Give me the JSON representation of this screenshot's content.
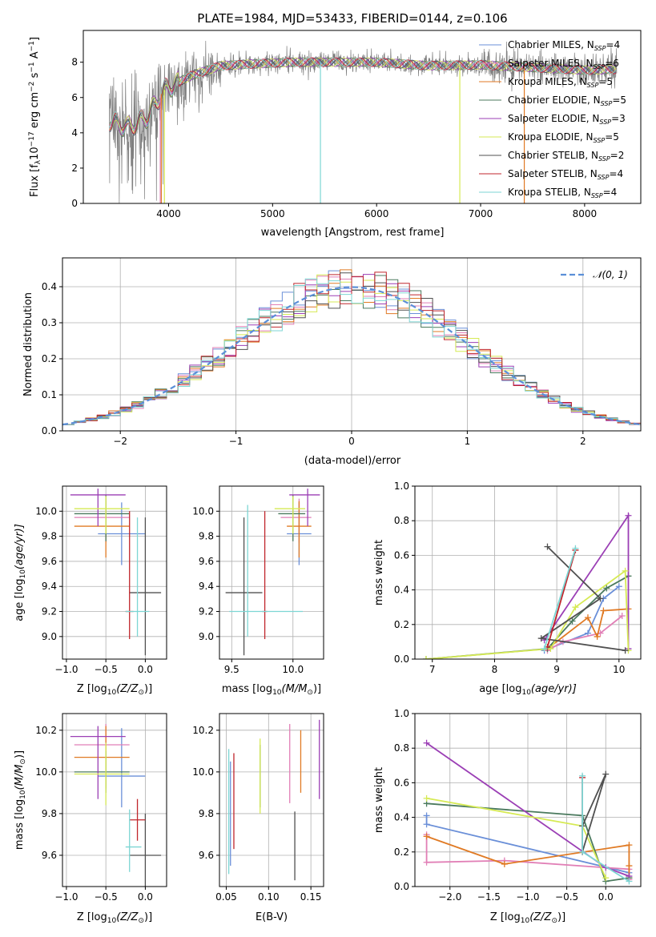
{
  "figure_title": "PLATE=1984, MJD=53433, FIBERID=0144, z=0.106",
  "models": [
    {
      "label": "Chabrier MILES, N",
      "sub": "SSP",
      "tail": "=4",
      "color": "#6a8fd8"
    },
    {
      "label": "Salpeter MILES, N",
      "sub": "SSP",
      "tail": "=6",
      "color": "#e17fb6"
    },
    {
      "label": "Kroupa MILES, N",
      "sub": "SSP",
      "tail": "=5",
      "color": "#e07a24"
    },
    {
      "label": "Chabrier ELODIE, N",
      "sub": "SSP",
      "tail": "=5",
      "color": "#4b7a5e"
    },
    {
      "label": "Salpeter ELODIE, N",
      "sub": "SSP",
      "tail": "=3",
      "color": "#9b3fb5"
    },
    {
      "label": "Kroupa ELODIE, N",
      "sub": "SSP",
      "tail": "=5",
      "color": "#d6ea54"
    },
    {
      "label": "Chabrier STELIB, N",
      "sub": "SSP",
      "tail": "=2",
      "color": "#505050"
    },
    {
      "label": "Salpeter STELIB, N",
      "sub": "SSP",
      "tail": "=4",
      "color": "#c0262c"
    },
    {
      "label": "Kroupa STELIB, N",
      "sub": "SSP",
      "tail": "=4",
      "color": "#7dd6d4"
    }
  ],
  "chart_data": [
    {
      "id": "spectrum",
      "type": "line",
      "xlabel": "wavelength [Angstrom, rest frame]",
      "ylabel_parts": [
        "Flux [f",
        "λ",
        "10",
        "−17",
        " erg cm",
        "−2",
        " s",
        "−1",
        " A",
        "−1",
        "]"
      ],
      "xlim": [
        3180,
        8540
      ],
      "ylim": [
        0,
        9.8
      ],
      "xticks": [
        4000,
        5000,
        6000,
        7000,
        8000
      ],
      "yticks": [
        0,
        2,
        4,
        6,
        8
      ],
      "data_color": "#7f7f7f",
      "continuum_knots": {
        "x": [
          3430,
          3600,
          3800,
          3950,
          4200,
          4500,
          4800,
          5200,
          5600,
          6000,
          6500,
          7000,
          7500,
          8000,
          8300
        ],
        "y": [
          4.7,
          4.3,
          4.9,
          6.4,
          7.2,
          7.8,
          7.9,
          8.0,
          8.0,
          8.0,
          7.8,
          7.85,
          7.7,
          7.55,
          7.6
        ]
      },
      "model_dropouts": [
        {
          "model": 2,
          "x": 3930
        },
        {
          "model": 5,
          "x": 3960
        },
        {
          "model": 8,
          "x": 5460
        },
        {
          "model": 5,
          "x": 6800
        },
        {
          "model": 2,
          "x": 7420
        },
        {
          "model": 1,
          "x": 3920
        }
      ]
    },
    {
      "id": "residual_hist",
      "type": "histogram",
      "xlabel": "(data-model)/error",
      "ylabel": "Normed distribution",
      "xlim": [
        -2.5,
        2.5
      ],
      "ylim": [
        0,
        0.48
      ],
      "xticks": [
        -2,
        -1,
        0,
        1,
        2
      ],
      "yticks": [
        0,
        0.1,
        0.2,
        0.3,
        0.4
      ],
      "bin_edges": [
        -2.5,
        -2.4,
        -2.3,
        -2.2,
        -2.1,
        -2.0,
        -1.9,
        -1.8,
        -1.7,
        -1.6,
        -1.5,
        -1.4,
        -1.3,
        -1.2,
        -1.1,
        -1.0,
        -0.9,
        -0.8,
        -0.7,
        -0.6,
        -0.5,
        -0.4,
        -0.3,
        -0.2,
        -0.1,
        0.0,
        0.1,
        0.2,
        0.3,
        0.4,
        0.5,
        0.6,
        0.7,
        0.8,
        0.9,
        1.0,
        1.1,
        1.2,
        1.3,
        1.4,
        1.5,
        1.6,
        1.7,
        1.8,
        1.9,
        2.0,
        2.1,
        2.2,
        2.3,
        2.4,
        2.5
      ],
      "reference_curve": {
        "label": "𝒩(0, 1)",
        "color": "#5b8fd8"
      }
    },
    {
      "id": "age_vs_Z",
      "type": "errorbar",
      "xlabel_parts": [
        "Z [log",
        "10",
        "(Z/Z",
        "⊙",
        ")]"
      ],
      "ylabel_parts": [
        "age  [log",
        "10",
        "(age/yr)]"
      ],
      "xlim": [
        -1.05,
        0.27
      ],
      "ylim": [
        8.82,
        10.2
      ],
      "xticks": [
        -1.0,
        -0.5,
        0.0
      ],
      "yticks": [
        9.0,
        9.2,
        9.4,
        9.6,
        9.8,
        10.0
      ],
      "points": [
        {
          "model": 0,
          "x": -0.3,
          "y": 9.82,
          "xerr": [
            0.3,
            0.3
          ],
          "yerr": [
            0.25,
            0.25
          ]
        },
        {
          "model": 1,
          "x": -0.5,
          "y": 9.95,
          "xerr": [
            0.4,
            0.3
          ],
          "yerr": [
            0.2,
            0.15
          ]
        },
        {
          "model": 2,
          "x": -0.5,
          "y": 9.88,
          "xerr": [
            0.4,
            0.3
          ],
          "yerr": [
            0.25,
            0.2
          ]
        },
        {
          "model": 3,
          "x": -0.5,
          "y": 9.98,
          "xerr": [
            0.4,
            0.3
          ],
          "yerr": [
            0.22,
            0.15
          ]
        },
        {
          "model": 4,
          "x": -0.6,
          "y": 10.13,
          "xerr": [
            0.35,
            0.35
          ],
          "yerr": [
            0.25,
            0.05
          ]
        },
        {
          "model": 5,
          "x": -0.5,
          "y": 10.02,
          "xerr": [
            0.4,
            0.3
          ],
          "yerr": [
            0.2,
            0.1
          ]
        },
        {
          "model": 6,
          "x": 0.0,
          "y": 9.35,
          "xerr": [
            0.2,
            0.2
          ],
          "yerr": [
            0.5,
            0.6
          ]
        },
        {
          "model": 7,
          "x": -0.2,
          "y": 9.2,
          "xerr": [
            0.05,
            0.05
          ],
          "yerr": [
            0.22,
            0.8
          ]
        },
        {
          "model": 8,
          "x": -0.1,
          "y": 9.2,
          "xerr": [
            0.15,
            0.15
          ],
          "yerr": [
            0.2,
            0.75
          ]
        }
      ]
    },
    {
      "id": "age_vs_mass",
      "type": "errorbar",
      "xlabel_parts": [
        "mass [log",
        "10",
        "(M/M",
        "⊙",
        ")]"
      ],
      "ylabel": "",
      "xlim": [
        9.4,
        10.25
      ],
      "ylim": [
        8.82,
        10.2
      ],
      "xticks": [
        9.5,
        10.0
      ],
      "yticks": [
        9.0,
        9.2,
        9.4,
        9.6,
        9.8,
        10.0
      ],
      "points": [
        {
          "model": 0,
          "x": 10.05,
          "y": 9.82,
          "xerr": [
            0.1,
            0.1
          ],
          "yerr": [
            0.25,
            0.25
          ]
        },
        {
          "model": 1,
          "x": 10.05,
          "y": 9.95,
          "xerr": [
            0.15,
            0.1
          ],
          "yerr": [
            0.2,
            0.15
          ]
        },
        {
          "model": 2,
          "x": 10.05,
          "y": 9.88,
          "xerr": [
            0.1,
            0.1
          ],
          "yerr": [
            0.25,
            0.2
          ]
        },
        {
          "model": 3,
          "x": 10.0,
          "y": 9.98,
          "xerr": [
            0.12,
            0.1
          ],
          "yerr": [
            0.22,
            0.15
          ]
        },
        {
          "model": 4,
          "x": 10.12,
          "y": 10.13,
          "xerr": [
            0.15,
            0.1
          ],
          "yerr": [
            0.25,
            0.05
          ]
        },
        {
          "model": 5,
          "x": 10.0,
          "y": 10.02,
          "xerr": [
            0.15,
            0.1
          ],
          "yerr": [
            0.2,
            0.1
          ]
        },
        {
          "model": 6,
          "x": 9.6,
          "y": 9.35,
          "xerr": [
            0.15,
            0.15
          ],
          "yerr": [
            0.5,
            0.6
          ]
        },
        {
          "model": 7,
          "x": 9.77,
          "y": 9.2,
          "xerr": [
            0.02,
            0.02
          ],
          "yerr": [
            0.22,
            0.8
          ]
        },
        {
          "model": 8,
          "x": 9.63,
          "y": 9.2,
          "xerr": [
            0.15,
            0.45
          ],
          "yerr": [
            0.2,
            0.85
          ]
        }
      ]
    },
    {
      "id": "weights_vs_age",
      "type": "line",
      "xlabel_parts": [
        "age  [log",
        "10",
        "(age/yr)]"
      ],
      "ylabel": "mass weight",
      "xlim": [
        6.72,
        10.35
      ],
      "ylim": [
        0,
        1.0
      ],
      "xticks": [
        7,
        8,
        9,
        10
      ],
      "yticks": [
        0.0,
        0.2,
        0.4,
        0.6,
        0.8,
        1.0
      ],
      "series": [
        {
          "model": 0,
          "x": [
            8.8,
            9.5,
            9.75,
            10.0
          ],
          "y": [
            0.05,
            0.15,
            0.35,
            0.42
          ]
        },
        {
          "model": 1,
          "x": [
            8.85,
            9.1,
            9.7,
            10.05
          ],
          "y": [
            0.05,
            0.1,
            0.15,
            0.25
          ]
        },
        {
          "model": 2,
          "x": [
            8.85,
            9.5,
            9.65,
            9.75,
            10.15
          ],
          "y": [
            0.06,
            0.24,
            0.13,
            0.28,
            0.29
          ]
        },
        {
          "model": 3,
          "x": [
            6.9,
            8.85,
            9.25,
            9.8,
            10.15
          ],
          "y": [
            0.0,
            0.06,
            0.22,
            0.41,
            0.48
          ]
        },
        {
          "model": 4,
          "x": [
            8.8,
            10.15,
            10.15
          ],
          "y": [
            0.11,
            0.83,
            0.06
          ]
        },
        {
          "model": 5,
          "x": [
            6.9,
            8.9,
            9.3,
            10.1,
            10.15
          ],
          "y": [
            0.0,
            0.06,
            0.3,
            0.51,
            0.05
          ]
        },
        {
          "model": 6,
          "x": [
            8.85,
            9.7,
            8.75,
            10.1
          ],
          "y": [
            0.65,
            0.35,
            0.12,
            0.05
          ]
        },
        {
          "model": 7,
          "x": [
            8.85,
            9.3
          ],
          "y": [
            0.07,
            0.63
          ]
        },
        {
          "model": 8,
          "x": [
            8.8,
            9.3
          ],
          "y": [
            0.06,
            0.64
          ]
        }
      ]
    },
    {
      "id": "mass_vs_Z",
      "type": "errorbar",
      "xlabel_parts": [
        "Z [log",
        "10",
        "(Z/Z",
        "⊙",
        ")]"
      ],
      "ylabel_parts": [
        "mass [log",
        "10",
        "(M/M",
        "⊙",
        ")]"
      ],
      "xlim": [
        -1.05,
        0.27
      ],
      "ylim": [
        9.45,
        10.28
      ],
      "xticks": [
        -1.0,
        -0.5,
        0.0
      ],
      "yticks": [
        9.6,
        9.8,
        10.0,
        10.2
      ],
      "points": [
        {
          "model": 0,
          "x": -0.3,
          "y": 9.98,
          "xerr": [
            0.3,
            0.3
          ],
          "yerr": [
            0.15,
            0.23
          ]
        },
        {
          "model": 1,
          "x": -0.5,
          "y": 10.13,
          "xerr": [
            0.4,
            0.3
          ],
          "yerr": [
            0.15,
            0.1
          ]
        },
        {
          "model": 2,
          "x": -0.5,
          "y": 10.07,
          "xerr": [
            0.4,
            0.3
          ],
          "yerr": [
            0.15,
            0.15
          ]
        },
        {
          "model": 3,
          "x": -0.5,
          "y": 10.0,
          "xerr": [
            0.4,
            0.3
          ],
          "yerr": [
            0.1,
            0.1
          ]
        },
        {
          "model": 4,
          "x": -0.6,
          "y": 10.17,
          "xerr": [
            0.35,
            0.35
          ],
          "yerr": [
            0.3,
            0.05
          ]
        },
        {
          "model": 5,
          "x": -0.5,
          "y": 9.99,
          "xerr": [
            0.4,
            0.3
          ],
          "yerr": [
            0.15,
            0.15
          ]
        },
        {
          "model": 6,
          "x": 0.0,
          "y": 9.6,
          "xerr": [
            0.2,
            0.2
          ],
          "yerr": [
            0.15,
            0.2
          ]
        },
        {
          "model": 7,
          "x": -0.1,
          "y": 9.77,
          "xerr": [
            0.1,
            0.1
          ],
          "yerr": [
            0.1,
            0.1
          ]
        },
        {
          "model": 8,
          "x": -0.2,
          "y": 9.64,
          "xerr": [
            0.05,
            0.15
          ],
          "yerr": [
            0.12,
            0.18
          ]
        }
      ]
    },
    {
      "id": "mass_vs_EBV",
      "type": "errorbar",
      "xlabel": "E(B-V)",
      "ylabel": "",
      "xlim": [
        0.042,
        0.165
      ],
      "ylim": [
        9.45,
        10.28
      ],
      "xticks": [
        0.05,
        0.1,
        0.15
      ],
      "yticks": [
        9.6,
        9.8,
        10.0,
        10.2
      ],
      "points": [
        {
          "model": 0,
          "x": 0.055,
          "y": 9.8,
          "xerr": [
            0,
            0
          ],
          "yerr": [
            0.25,
            0.25
          ]
        },
        {
          "model": 1,
          "x": 0.125,
          "y": 10.05,
          "xerr": [
            0,
            0
          ],
          "yerr": [
            0.2,
            0.18
          ]
        },
        {
          "model": 2,
          "x": 0.138,
          "y": 10.05,
          "xerr": [
            0,
            0
          ],
          "yerr": [
            0.15,
            0.15
          ]
        },
        {
          "model": 3,
          "x": 0.09,
          "y": 9.98,
          "xerr": [
            0,
            0
          ],
          "yerr": [
            0.15,
            0.15
          ]
        },
        {
          "model": 4,
          "x": 0.16,
          "y": 10.05,
          "xerr": [
            0,
            0
          ],
          "yerr": [
            0.18,
            0.2
          ]
        },
        {
          "model": 5,
          "x": 0.09,
          "y": 9.98,
          "xerr": [
            0,
            0
          ],
          "yerr": [
            0.18,
            0.18
          ]
        },
        {
          "model": 6,
          "x": 0.131,
          "y": 9.6,
          "xerr": [
            0,
            0
          ],
          "yerr": [
            0.12,
            0.21
          ]
        },
        {
          "model": 7,
          "x": 0.059,
          "y": 9.86,
          "xerr": [
            0,
            0
          ],
          "yerr": [
            0.23,
            0.23
          ]
        },
        {
          "model": 8,
          "x": 0.053,
          "y": 9.81,
          "xerr": [
            0,
            0
          ],
          "yerr": [
            0.3,
            0.3
          ]
        }
      ]
    },
    {
      "id": "weights_vs_Z",
      "type": "line",
      "xlabel_parts": [
        "Z [log",
        "10",
        "(Z/Z",
        "⊙",
        ")]"
      ],
      "ylabel": "mass weight",
      "xlim": [
        -2.45,
        0.45
      ],
      "ylim": [
        0,
        1.0
      ],
      "xticks": [
        -2.0,
        -1.5,
        -1.0,
        -0.5,
        0.0
      ],
      "yticks": [
        0.0,
        0.2,
        0.4,
        0.6,
        0.8,
        1.0
      ],
      "series": [
        {
          "model": 0,
          "x": [
            -2.3,
            -2.3,
            0.3
          ],
          "y": [
            0.41,
            0.36,
            0.08
          ]
        },
        {
          "model": 1,
          "x": [
            -2.3,
            -2.3,
            -1.3,
            0.3,
            0.3
          ],
          "y": [
            0.3,
            0.14,
            0.15,
            0.1,
            0.04
          ]
        },
        {
          "model": 2,
          "x": [
            -2.3,
            -1.3,
            0.3,
            0.3,
            0.3
          ],
          "y": [
            0.29,
            0.13,
            0.24,
            0.12,
            0.05
          ]
        },
        {
          "model": 3,
          "x": [
            -2.3,
            -0.3,
            0.0,
            0.3
          ],
          "y": [
            0.48,
            0.41,
            0.03,
            0.05
          ]
        },
        {
          "model": 4,
          "x": [
            -2.3,
            0.0,
            0.3
          ],
          "y": [
            0.83,
            0.11,
            0.06
          ]
        },
        {
          "model": 5,
          "x": [
            -2.3,
            -0.3,
            0.0
          ],
          "y": [
            0.51,
            0.35,
            0.05
          ]
        },
        {
          "model": 6,
          "x": [
            -0.3,
            0.0,
            -0.3
          ],
          "y": [
            0.35,
            0.65,
            0.2
          ]
        },
        {
          "model": 7,
          "x": [
            -0.3,
            -0.3
          ],
          "y": [
            0.63,
            0.2
          ]
        },
        {
          "model": 8,
          "x": [
            -0.3,
            -0.3,
            0.3
          ],
          "y": [
            0.64,
            0.2,
            0.03
          ]
        }
      ]
    }
  ]
}
